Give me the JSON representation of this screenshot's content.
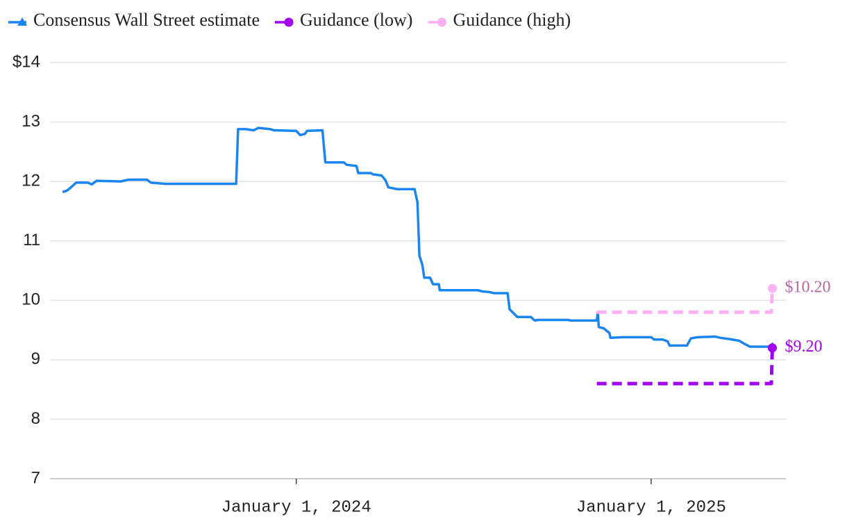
{
  "chart_data": {
    "type": "line",
    "xlim": [
      "2023-04-22",
      "2025-05-20"
    ],
    "xticks": [
      {
        "value": "2024-01-01",
        "label": "January 1, 2024"
      },
      {
        "value": "2025-01-01",
        "label": "January 1, 2025"
      }
    ],
    "ylim": [
      7,
      14
    ],
    "yticks": [
      7,
      8,
      9,
      10,
      11,
      12,
      13,
      {
        "value": 14,
        "label": "$14"
      }
    ],
    "grid": true,
    "legend": "top-left",
    "series": [
      {
        "name": "Consensus Wall Street estimate",
        "color": "#1a85f0",
        "marker": "triangle",
        "dashed": false,
        "x": [
          "2023-05-05",
          "2023-05-10",
          "2023-05-15",
          "2023-05-19",
          "2023-05-31",
          "2023-06-04",
          "2023-06-09",
          "2023-07-04",
          "2023-07-12",
          "2023-07-31",
          "2023-08-04",
          "2023-08-19",
          "2023-10-02",
          "2023-10-31",
          "2023-11-02",
          "2023-11-10",
          "2023-11-18",
          "2023-11-23",
          "2023-12-05",
          "2023-12-09",
          "2024-01-01",
          "2024-01-05",
          "2024-01-10",
          "2024-01-12",
          "2024-01-28",
          "2024-01-31",
          "2024-02-19",
          "2024-02-22",
          "2024-03-03",
          "2024-03-05",
          "2024-03-18",
          "2024-03-20",
          "2024-03-29",
          "2024-04-02",
          "2024-04-05",
          "2024-04-14",
          "2024-04-17",
          "2024-05-02",
          "2024-05-05",
          "2024-05-07",
          "2024-05-10",
          "2024-05-12",
          "2024-05-18",
          "2024-05-21",
          "2024-05-27",
          "2024-05-28",
          "2024-07-06",
          "2024-07-11",
          "2024-07-18",
          "2024-07-23",
          "2024-08-06",
          "2024-08-08",
          "2024-08-16",
          "2024-08-30",
          "2024-09-03",
          "2024-09-06",
          "2024-10-07",
          "2024-10-10",
          "2024-11-06",
          "2024-11-07",
          "2024-11-08",
          "2024-11-13",
          "2024-11-19",
          "2024-11-20",
          "2024-12-03",
          "2025-01-01",
          "2025-01-04",
          "2025-01-13",
          "2025-01-18",
          "2025-01-20",
          "2025-02-07",
          "2025-02-11",
          "2025-02-18",
          "2025-03-08",
          "2025-03-13",
          "2025-03-22",
          "2025-04-02",
          "2025-04-07",
          "2025-04-13",
          "2025-05-06"
        ],
        "values": [
          11.82,
          11.85,
          11.92,
          11.98,
          11.98,
          11.95,
          12.01,
          12.0,
          12.03,
          12.03,
          11.98,
          11.96,
          11.96,
          11.96,
          12.88,
          12.88,
          12.86,
          12.9,
          12.88,
          12.86,
          12.85,
          12.78,
          12.8,
          12.85,
          12.86,
          12.32,
          12.32,
          12.28,
          12.26,
          12.14,
          12.14,
          12.12,
          12.1,
          12.02,
          11.9,
          11.87,
          11.87,
          11.87,
          11.65,
          10.75,
          10.6,
          10.38,
          10.38,
          10.27,
          10.27,
          10.17,
          10.17,
          10.15,
          10.14,
          10.12,
          10.12,
          9.85,
          9.72,
          9.72,
          9.66,
          9.67,
          9.67,
          9.66,
          9.66,
          9.8,
          9.55,
          9.53,
          9.45,
          9.37,
          9.38,
          9.38,
          9.34,
          9.34,
          9.31,
          9.24,
          9.24,
          9.36,
          9.38,
          9.39,
          9.37,
          9.35,
          9.32,
          9.27,
          9.22,
          9.22
        ]
      },
      {
        "name": "Guidance (low)",
        "color": "#a100f2",
        "marker": "circle",
        "dashed": true,
        "label_color": "#a100f2",
        "x": [
          "2024-11-06",
          "2025-05-05",
          "2025-05-06"
        ],
        "values": [
          8.6,
          8.6,
          9.2
        ],
        "value_labels": [
          null,
          null,
          "$9.20"
        ]
      },
      {
        "name": "Guidance (high)",
        "color": "#ffb0f5",
        "marker": "circle",
        "dashed": true,
        "label_color": "#b06aa8",
        "x": [
          "2024-11-06",
          "2025-05-05",
          "2025-05-06"
        ],
        "values": [
          9.8,
          9.8,
          10.2
        ],
        "value_labels": [
          null,
          null,
          "$10.20"
        ]
      }
    ]
  }
}
